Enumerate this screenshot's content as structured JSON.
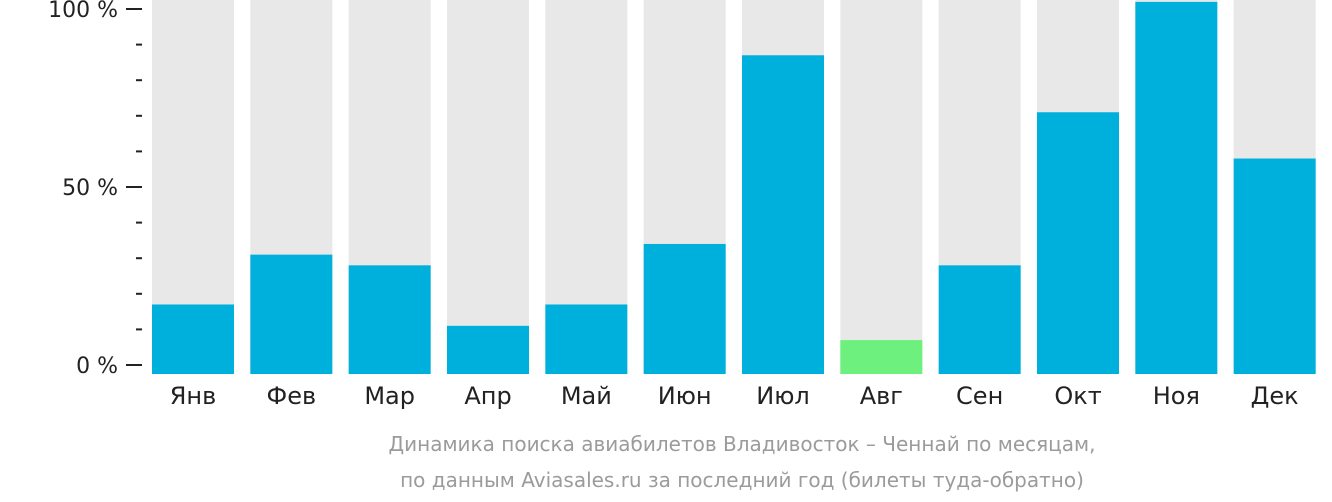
{
  "colors": {
    "bar": "#00b0dc",
    "bar_highlight": "#6ef07e",
    "track": "#e8e8e8",
    "axis": "#222222",
    "caption": "#9b9b9b"
  },
  "caption": {
    "line1": "Динамика поиска авиабилетов Владивосток – Ченнай по месяцам,",
    "line2": "по данным Aviasales.ru за последний год (билеты туда-обратно)"
  },
  "chart_data": {
    "type": "bar",
    "categories": [
      "Янв",
      "Фев",
      "Мар",
      "Апр",
      "Май",
      "Июн",
      "Июл",
      "Авг",
      "Сен",
      "Окт",
      "Ноя",
      "Дек"
    ],
    "values": [
      17,
      31,
      28,
      11,
      17,
      34,
      87,
      7,
      28,
      71,
      102,
      58
    ],
    "highlight_index": 7,
    "ylim": [
      0,
      100
    ],
    "yticks": [
      0,
      50,
      100
    ],
    "ytick_labels": [
      "0 %",
      "50 %",
      "100 %"
    ],
    "minor_tick_step": 10,
    "grid": false,
    "title": "",
    "xlabel": "",
    "ylabel": ""
  }
}
